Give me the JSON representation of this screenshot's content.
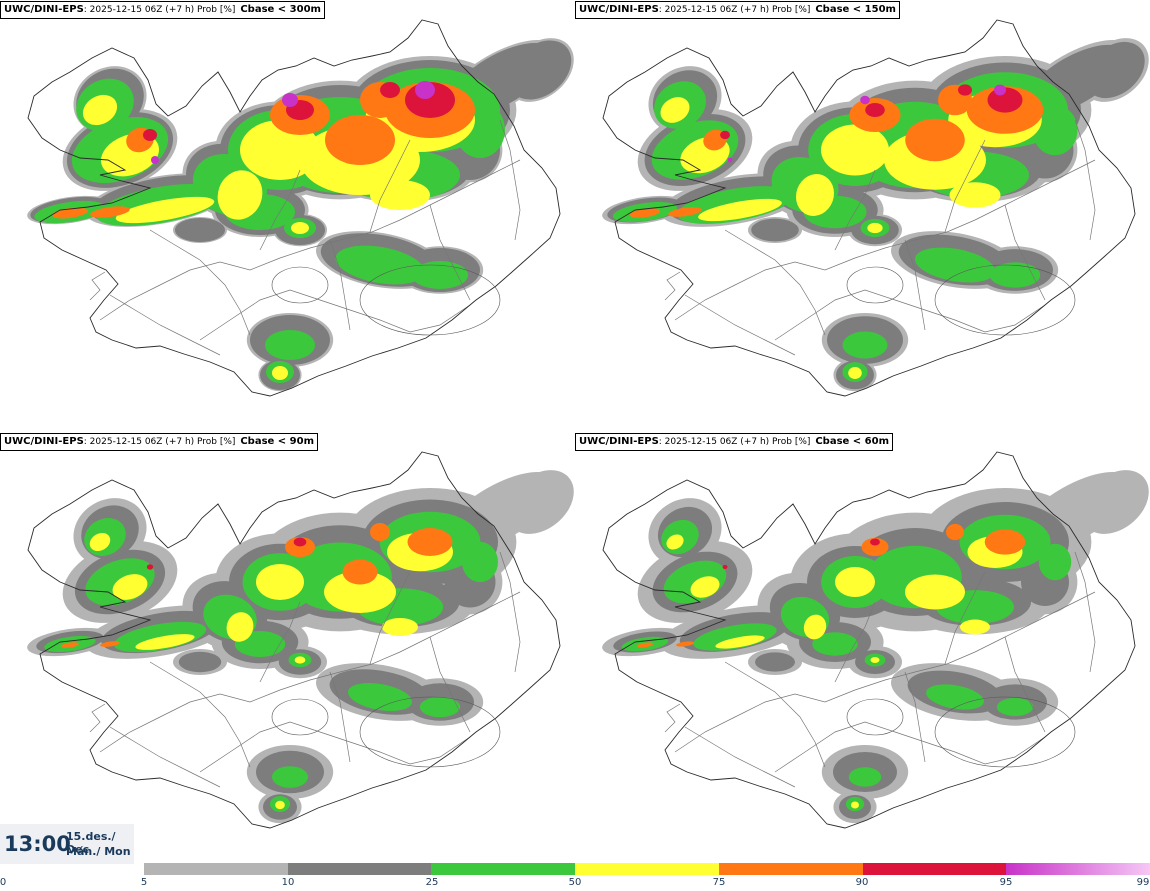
{
  "panels": [
    {
      "model": "UWC/DINI-EPS",
      "info": ": 2025-12-15 06Z (+7 h) Prob [%]",
      "threshold": "Cbase < 300m"
    },
    {
      "model": "UWC/DINI-EPS",
      "info": ": 2025-12-15 06Z (+7 h) Prob [%]",
      "threshold": "Cbase < 150m"
    },
    {
      "model": "UWC/DINI-EPS",
      "info": ": 2025-12-15 06Z (+7 h) Prob [%]",
      "threshold": "Cbase < 90m"
    },
    {
      "model": "UWC/DINI-EPS",
      "info": ": 2025-12-15 06Z (+7 h) Prob [%]",
      "threshold": "Cbase < 60m"
    }
  ],
  "valid_time": {
    "time": "13:00",
    "date_line": "15.des./ Dec",
    "day_line": "Mán./ Mon"
  },
  "legend": {
    "ticks": [
      "0",
      "5",
      "10",
      "25",
      "50",
      "75",
      "90",
      "95",
      "99"
    ],
    "bins": [
      {
        "from": 5,
        "to": 10,
        "color": "#b4b4b4"
      },
      {
        "from": 10,
        "to": 25,
        "color": "#7d7d7d"
      },
      {
        "from": 25,
        "to": 50,
        "color": "#3cc83c"
      },
      {
        "from": 50,
        "to": 75,
        "color": "#ffff32"
      },
      {
        "from": 75,
        "to": 90,
        "color": "#ff7814"
      },
      {
        "from": 90,
        "to": 95,
        "color": "#dc143c"
      },
      {
        "from": 95,
        "to": 99,
        "gradient": [
          "#c832c8",
          "#f5c8f5"
        ]
      }
    ]
  },
  "colors": {
    "outline": "#2a2a2a",
    "roads": "#777777",
    "text": "#1a3a5c"
  }
}
